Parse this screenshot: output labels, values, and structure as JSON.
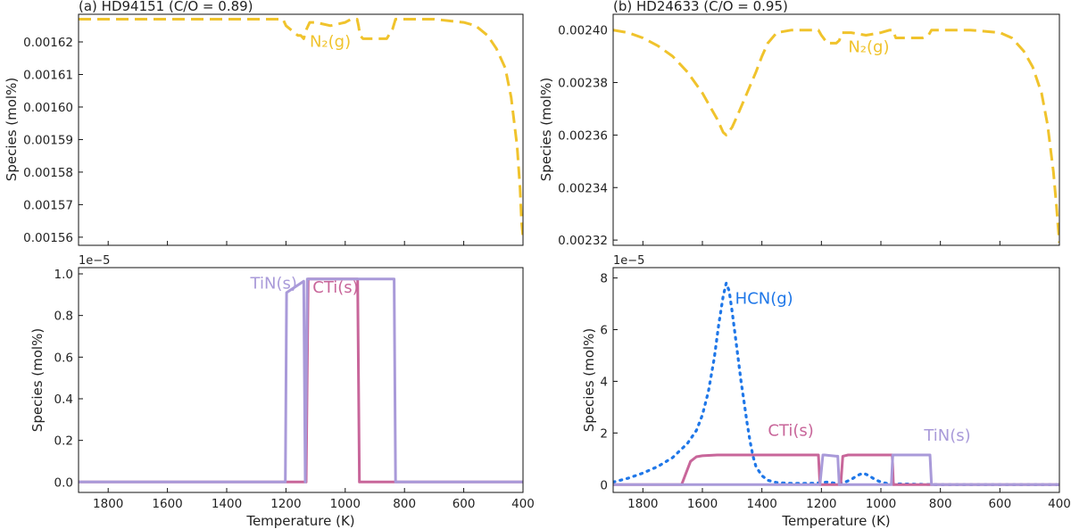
{
  "chart_data": [
    {
      "id": "a_top",
      "type": "line",
      "title": "(a) HD94151 (C/O = 0.89)",
      "ylabel": "Species (mol%)",
      "xlim": [
        1900,
        400
      ],
      "ylim": [
        0.0015575,
        0.0016285
      ],
      "yticks": [
        0.00156,
        0.00157,
        0.00158,
        0.00159,
        0.0016,
        0.00161,
        0.00162
      ],
      "ytick_labels": [
        "0.00156",
        "0.00157",
        "0.00158",
        "0.00159",
        "0.00160",
        "0.00161",
        "0.00162"
      ],
      "grid": false,
      "series": [
        {
          "name": "N₂(g)",
          "color": "#f0c32c",
          "style": "dashed",
          "x": [
            1900,
            1700,
            1500,
            1300,
            1210,
            1200,
            1160,
            1150,
            1140,
            1130,
            1120,
            1100,
            1050,
            1000,
            980,
            960,
            955,
            950,
            940,
            900,
            860,
            840,
            830,
            800,
            700,
            600,
            560,
            520,
            490,
            460,
            440,
            420,
            410,
            405,
            400
          ],
          "y": [
            0.001627,
            0.001627,
            0.001627,
            0.001627,
            0.001627,
            0.001625,
            0.001622,
            0.001622,
            0.001621,
            0.001624,
            0.001626,
            0.001626,
            0.001625,
            0.001626,
            0.001627,
            0.001627,
            0.001625,
            0.001622,
            0.001621,
            0.001621,
            0.001621,
            0.001624,
            0.001627,
            0.001627,
            0.001627,
            0.001626,
            0.001625,
            0.001622,
            0.001618,
            0.001612,
            0.001603,
            0.001588,
            0.001575,
            0.001565,
            0.00156
          ]
        }
      ],
      "annotations": [
        {
          "text": "N₂(g)",
          "x": 1120,
          "y": 0.0016185,
          "color": "#f0c32c"
        }
      ]
    },
    {
      "id": "a_bottom",
      "type": "line",
      "xlabel": "Temperature (K)",
      "ylabel": "Species (mol%)",
      "offset_text": "1e−5",
      "xlim": [
        1900,
        400
      ],
      "ylim": [
        -0.05,
        1.03
      ],
      "xticks": [
        1800,
        1600,
        1400,
        1200,
        1000,
        800,
        600,
        400
      ],
      "xtick_labels": [
        "1800",
        "1600",
        "1400",
        "1200",
        "1000",
        "800",
        "600",
        "400"
      ],
      "yticks": [
        0,
        0.2,
        0.4,
        0.6,
        0.8,
        1.0
      ],
      "ytick_labels": [
        "0.0",
        "0.2",
        "0.4",
        "0.6",
        "0.8",
        "1.0"
      ],
      "grid": false,
      "series": [
        {
          "name": "CTi(s)",
          "color": "#c8669a",
          "style": "solid",
          "x": [
            1900,
            1132,
            1125,
            958,
            952,
            400
          ],
          "y": [
            0,
            0,
            0.975,
            0.975,
            0,
            0
          ]
        },
        {
          "name": "TiN(s)",
          "color": "#a99ad9",
          "style": "solid",
          "x": [
            1900,
            1202,
            1198,
            1140,
            1135,
            1128,
            955,
            950,
            835,
            830,
            400
          ],
          "y": [
            0,
            0,
            0.91,
            0.965,
            0,
            0.975,
            0.975,
            0.975,
            0.975,
            0,
            0
          ]
        }
      ],
      "annotations": [
        {
          "text": "TiN(s)",
          "x": 1320,
          "y": 0.93,
          "color": "#a99ad9"
        },
        {
          "text": "CTi(s)",
          "x": 1110,
          "y": 0.91,
          "color": "#c8669a"
        }
      ]
    },
    {
      "id": "b_top",
      "type": "line",
      "title": "(b) HD24633 (C/O = 0.95)",
      "ylabel": "Species (mol%)",
      "xlim": [
        1900,
        400
      ],
      "ylim": [
        0.002318,
        0.002406
      ],
      "yticks": [
        0.00232,
        0.00234,
        0.00236,
        0.00238,
        0.0024
      ],
      "ytick_labels": [
        "0.00232",
        "0.00234",
        "0.00236",
        "0.00238",
        "0.00240"
      ],
      "grid": false,
      "series": [
        {
          "name": "N₂(g)",
          "color": "#f0c32c",
          "style": "dashed",
          "x": [
            1900,
            1850,
            1800,
            1750,
            1700,
            1650,
            1600,
            1570,
            1550,
            1530,
            1520,
            1500,
            1480,
            1450,
            1420,
            1400,
            1380,
            1350,
            1300,
            1250,
            1210,
            1200,
            1180,
            1160,
            1150,
            1140,
            1130,
            1100,
            1050,
            1000,
            970,
            960,
            950,
            900,
            860,
            840,
            830,
            800,
            700,
            600,
            560,
            520,
            490,
            460,
            440,
            420,
            410,
            400
          ],
          "y": [
            0.0024,
            0.002399,
            0.002397,
            0.002394,
            0.00239,
            0.002384,
            0.002376,
            0.00237,
            0.002366,
            0.002361,
            0.00236,
            0.002363,
            0.002368,
            0.002376,
            0.002384,
            0.00239,
            0.002395,
            0.002399,
            0.0024,
            0.0024,
            0.0024,
            0.002398,
            0.002395,
            0.002395,
            0.002395,
            0.002396,
            0.002399,
            0.002399,
            0.002398,
            0.002399,
            0.0024,
            0.0024,
            0.002397,
            0.002397,
            0.002397,
            0.002398,
            0.0024,
            0.0024,
            0.0024,
            0.002399,
            0.002397,
            0.002392,
            0.002386,
            0.002376,
            0.002364,
            0.002346,
            0.002333,
            0.002319
          ]
        }
      ],
      "annotations": [
        {
          "text": "N₂(g)",
          "x": 1110,
          "y": 0.0023915,
          "color": "#f0c32c"
        }
      ]
    },
    {
      "id": "b_bottom",
      "type": "line",
      "xlabel": "Temperature (K)",
      "ylabel": "Species (mol%)",
      "offset_text": "1e−5",
      "xlim": [
        1900,
        400
      ],
      "ylim": [
        -0.3,
        8.4
      ],
      "xticks": [
        1800,
        1600,
        1400,
        1200,
        1000,
        800,
        600,
        400
      ],
      "xtick_labels": [
        "1800",
        "1600",
        "1400",
        "1200",
        "1000",
        "800",
        "600",
        "400"
      ],
      "yticks": [
        0,
        2,
        4,
        6,
        8
      ],
      "ytick_labels": [
        "0",
        "2",
        "4",
        "6",
        "8"
      ],
      "grid": false,
      "series": [
        {
          "name": "HCN(g)",
          "color": "#1f77e8",
          "style": "dotted",
          "x": [
            1900,
            1850,
            1800,
            1750,
            1700,
            1650,
            1620,
            1600,
            1580,
            1560,
            1545,
            1530,
            1520,
            1510,
            1500,
            1490,
            1480,
            1470,
            1460,
            1450,
            1440,
            1430,
            1420,
            1400,
            1380,
            1350,
            1300,
            1250,
            1220,
            1200,
            1180,
            1150,
            1120,
            1100,
            1080,
            1060,
            1040,
            1020,
            1000,
            980,
            960,
            900,
            850,
            800,
            700,
            600,
            500,
            400
          ],
          "y": [
            0.1,
            0.25,
            0.45,
            0.7,
            1.05,
            1.6,
            2.1,
            2.7,
            3.6,
            4.9,
            6.2,
            7.3,
            7.8,
            7.5,
            6.7,
            5.8,
            4.9,
            4.0,
            3.2,
            2.4,
            1.7,
            1.1,
            0.7,
            0.35,
            0.17,
            0.08,
            0.05,
            0.05,
            0.06,
            0.08,
            0.1,
            0.05,
            0.1,
            0.2,
            0.35,
            0.45,
            0.35,
            0.2,
            0.1,
            0.05,
            0.03,
            0.02,
            0.01,
            0.0,
            0.0,
            0.0,
            0.0,
            0.0
          ]
        },
        {
          "name": "CTi(s)",
          "color": "#c8669a",
          "style": "solid",
          "x": [
            1900,
            1670,
            1660,
            1640,
            1620,
            1600,
            1550,
            1500,
            1400,
            1300,
            1210,
            1205,
            1195,
            1140,
            1135,
            1128,
            1110,
            1000,
            970,
            962,
            958,
            950,
            400
          ],
          "y": [
            0,
            0,
            0.3,
            0.9,
            1.08,
            1.12,
            1.15,
            1.15,
            1.15,
            1.15,
            1.15,
            0,
            0,
            0,
            0,
            1.1,
            1.15,
            1.15,
            1.15,
            1.15,
            0,
            0,
            0
          ]
        },
        {
          "name": "TiN(s)",
          "color": "#a99ad9",
          "style": "solid",
          "x": [
            1900,
            1205,
            1195,
            1190,
            1150,
            1145,
            1140,
            1135,
            1130,
            1128,
            965,
            960,
            840,
            835,
            830,
            400
          ],
          "y": [
            0,
            0,
            1.15,
            1.15,
            1.1,
            1.1,
            0,
            0,
            0,
            0,
            0,
            1.15,
            1.15,
            1.15,
            0,
            0
          ]
        }
      ],
      "annotations": [
        {
          "text": "HCN(g)",
          "x": 1490,
          "y": 7.0,
          "color": "#1f77e8"
        },
        {
          "text": "CTi(s)",
          "x": 1380,
          "y": 1.9,
          "color": "#c8669a"
        },
        {
          "text": "TiN(s)",
          "x": 855,
          "y": 1.7,
          "color": "#a99ad9"
        }
      ]
    }
  ]
}
